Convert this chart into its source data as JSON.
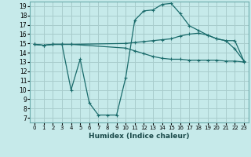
{
  "xlabel": "Humidex (Indice chaleur)",
  "xlim": [
    -0.5,
    23.5
  ],
  "ylim": [
    6.5,
    19.5
  ],
  "xticks": [
    0,
    1,
    2,
    3,
    4,
    5,
    6,
    7,
    8,
    9,
    10,
    11,
    12,
    13,
    14,
    15,
    16,
    17,
    18,
    19,
    20,
    21,
    22,
    23
  ],
  "yticks": [
    7,
    8,
    9,
    10,
    11,
    12,
    13,
    14,
    15,
    16,
    17,
    18,
    19
  ],
  "background_color": "#c6eaea",
  "grid_color": "#a8cccc",
  "line_color": "#1a6b6b",
  "lines": [
    {
      "x": [
        0,
        1,
        2,
        3,
        4,
        5,
        6,
        7,
        8,
        9,
        10,
        11,
        12,
        13,
        14,
        15,
        16,
        17,
        18,
        19,
        20,
        21,
        22,
        23
      ],
      "y": [
        14.9,
        14.8,
        14.9,
        14.9,
        10.0,
        13.3,
        8.6,
        7.3,
        7.3,
        7.3,
        11.3,
        17.5,
        18.5,
        18.6,
        19.2,
        19.3,
        18.2,
        16.9,
        16.4,
        15.9,
        15.5,
        15.3,
        14.4,
        13.1
      ]
    },
    {
      "x": [
        0,
        1,
        2,
        3,
        4,
        10,
        11,
        12,
        13,
        14,
        15,
        16,
        17,
        18,
        19,
        20,
        21,
        22,
        23
      ],
      "y": [
        14.9,
        14.8,
        14.9,
        14.9,
        14.9,
        15.0,
        15.1,
        15.2,
        15.3,
        15.4,
        15.5,
        15.8,
        16.0,
        16.1,
        15.9,
        15.5,
        15.3,
        15.3,
        13.1
      ]
    },
    {
      "x": [
        0,
        1,
        2,
        3,
        4,
        10,
        11,
        12,
        13,
        14,
        15,
        16,
        17,
        18,
        19,
        20,
        21,
        22,
        23
      ],
      "y": [
        14.9,
        14.8,
        14.9,
        14.9,
        14.9,
        14.5,
        14.2,
        13.9,
        13.6,
        13.4,
        13.3,
        13.3,
        13.2,
        13.2,
        13.2,
        13.2,
        13.1,
        13.1,
        13.0
      ]
    }
  ]
}
